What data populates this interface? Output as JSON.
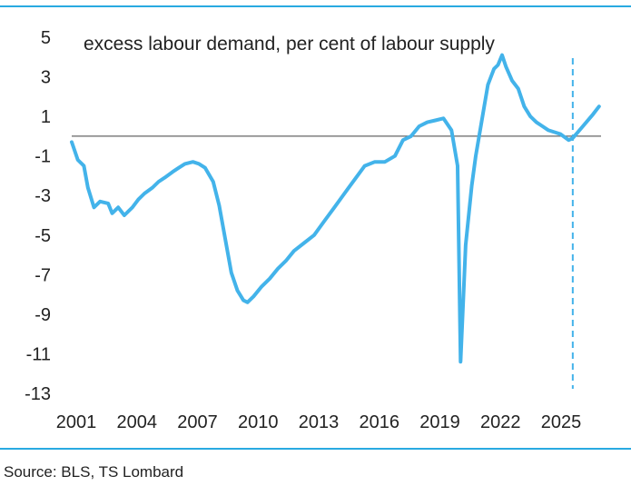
{
  "colors": {
    "rule": "#29aae1",
    "series": "#43b3ea",
    "zero_line": "#666666",
    "text": "#222222"
  },
  "footer": {
    "source": "Source: BLS, TS Lombard"
  },
  "chart_data": {
    "type": "line",
    "title": "excess labour demand, per cent of labour supply",
    "xlabel": "",
    "ylabel": "",
    "xlim": [
      2001.0,
      2027.2
    ],
    "ylim": [
      -13,
      5
    ],
    "yticks": [
      5,
      3,
      1,
      -1,
      -3,
      -5,
      -7,
      -9,
      -11,
      -13
    ],
    "ytick_labels": [
      "5",
      "3",
      "1",
      "-1",
      "-3",
      "-5",
      "-7",
      "-9",
      "-11",
      "-13"
    ],
    "xticks": [
      2001,
      2004,
      2007,
      2010,
      2013,
      2016,
      2019,
      2022,
      2025
    ],
    "xtick_labels": [
      "2001",
      "2004",
      "2007",
      "2010",
      "2013",
      "2016",
      "2019",
      "2022",
      "2025"
    ],
    "reference_line": {
      "y": 0
    },
    "forecast_start_x": 2025.8,
    "grid": false,
    "legend": "none",
    "series": [
      {
        "values": [
          [
            2001.0,
            -0.3
          ],
          [
            2001.3,
            -1.2
          ],
          [
            2001.6,
            -1.5
          ],
          [
            2001.8,
            -2.6
          ],
          [
            2002.1,
            -3.6
          ],
          [
            2002.4,
            -3.3
          ],
          [
            2002.8,
            -3.4
          ],
          [
            2003.0,
            -3.9
          ],
          [
            2003.3,
            -3.6
          ],
          [
            2003.6,
            -4.0
          ],
          [
            2004.0,
            -3.6
          ],
          [
            2004.3,
            -3.2
          ],
          [
            2004.6,
            -2.9
          ],
          [
            2005.0,
            -2.6
          ],
          [
            2005.3,
            -2.3
          ],
          [
            2005.6,
            -2.1
          ],
          [
            2006.0,
            -1.8
          ],
          [
            2006.3,
            -1.6
          ],
          [
            2006.6,
            -1.4
          ],
          [
            2007.0,
            -1.3
          ],
          [
            2007.3,
            -1.4
          ],
          [
            2007.6,
            -1.6
          ],
          [
            2008.0,
            -2.3
          ],
          [
            2008.3,
            -3.5
          ],
          [
            2008.6,
            -5.2
          ],
          [
            2008.9,
            -6.9
          ],
          [
            2009.2,
            -7.8
          ],
          [
            2009.5,
            -8.3
          ],
          [
            2009.7,
            -8.4
          ],
          [
            2010.0,
            -8.1
          ],
          [
            2010.4,
            -7.6
          ],
          [
            2010.8,
            -7.2
          ],
          [
            2011.2,
            -6.7
          ],
          [
            2011.6,
            -6.3
          ],
          [
            2012.0,
            -5.8
          ],
          [
            2012.5,
            -5.4
          ],
          [
            2013.0,
            -5.0
          ],
          [
            2013.5,
            -4.3
          ],
          [
            2014.0,
            -3.6
          ],
          [
            2014.5,
            -2.9
          ],
          [
            2015.0,
            -2.2
          ],
          [
            2015.5,
            -1.5
          ],
          [
            2016.0,
            -1.3
          ],
          [
            2016.5,
            -1.3
          ],
          [
            2017.0,
            -1.0
          ],
          [
            2017.4,
            -0.2
          ],
          [
            2017.8,
            0.0
          ],
          [
            2018.2,
            0.5
          ],
          [
            2018.6,
            0.7
          ],
          [
            2019.0,
            0.8
          ],
          [
            2019.4,
            0.9
          ],
          [
            2019.8,
            0.3
          ],
          [
            2020.1,
            -1.5
          ],
          [
            2020.25,
            -11.4
          ],
          [
            2020.5,
            -5.5
          ],
          [
            2020.8,
            -2.5
          ],
          [
            2021.0,
            -1.0
          ],
          [
            2021.3,
            0.8
          ],
          [
            2021.6,
            2.6
          ],
          [
            2021.9,
            3.4
          ],
          [
            2022.1,
            3.6
          ],
          [
            2022.3,
            4.1
          ],
          [
            2022.5,
            3.5
          ],
          [
            2022.8,
            2.8
          ],
          [
            2023.1,
            2.4
          ],
          [
            2023.4,
            1.5
          ],
          [
            2023.7,
            1.0
          ],
          [
            2024.0,
            0.7
          ],
          [
            2024.3,
            0.5
          ],
          [
            2024.6,
            0.3
          ],
          [
            2024.9,
            0.2
          ],
          [
            2025.2,
            0.1
          ],
          [
            2025.6,
            -0.2
          ],
          [
            2025.8,
            -0.1
          ],
          [
            2026.3,
            0.5
          ],
          [
            2026.8,
            1.1
          ],
          [
            2027.1,
            1.5
          ]
        ]
      }
    ]
  }
}
